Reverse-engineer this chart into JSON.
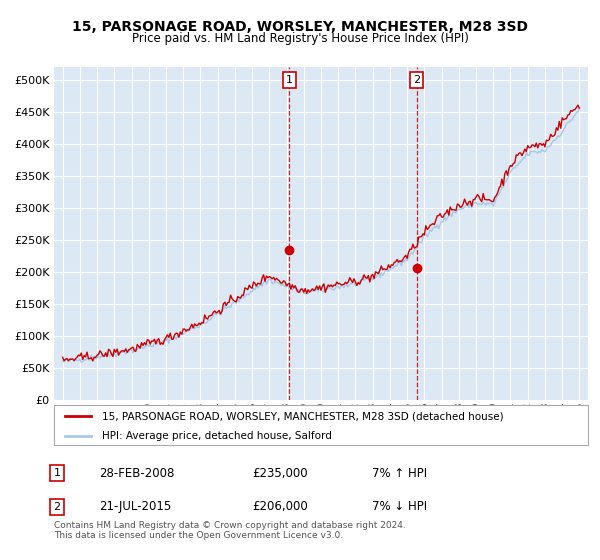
{
  "title": "15, PARSONAGE ROAD, WORSLEY, MANCHESTER, M28 3SD",
  "subtitle": "Price paid vs. HM Land Registry's House Price Index (HPI)",
  "ytick_values": [
    0,
    50000,
    100000,
    150000,
    200000,
    250000,
    300000,
    350000,
    400000,
    450000,
    500000
  ],
  "xlim_start": 1994.5,
  "xlim_end": 2025.5,
  "ylim": [
    0,
    520000
  ],
  "background_color": "#ffffff",
  "plot_bg_color": "#dce9f5",
  "grid_color": "#ffffff",
  "hpi_color": "#a8c8e8",
  "price_color": "#cc0000",
  "marker1_date": 2008.167,
  "marker1_price": 235000,
  "marker2_date": 2015.55,
  "marker2_price": 206000,
  "legend_price_label": "15, PARSONAGE ROAD, WORSLEY, MANCHESTER, M28 3SD (detached house)",
  "legend_hpi_label": "HPI: Average price, detached house, Salford",
  "table_rows": [
    {
      "num": "1",
      "date": "28-FEB-2008",
      "price": "£235,000",
      "hpi": "7% ↑ HPI"
    },
    {
      "num": "2",
      "date": "21-JUL-2015",
      "price": "£206,000",
      "hpi": "7% ↓ HPI"
    }
  ],
  "footer": "Contains HM Land Registry data © Crown copyright and database right 2024.\nThis data is licensed under the Open Government Licence v3.0.",
  "hpi_anchors_x": [
    1995,
    1997,
    1999,
    2001,
    2003,
    2005,
    2006,
    2007,
    2008,
    2009,
    2010,
    2011,
    2012,
    2013,
    2014,
    2015,
    2016,
    2017,
    2018,
    2019,
    2020,
    2021,
    2022,
    2023,
    2024,
    2025
  ],
  "hpi_anchors_y": [
    60000,
    68000,
    78000,
    93000,
    118000,
    152000,
    172000,
    188000,
    178000,
    168000,
    172000,
    177000,
    182000,
    190000,
    205000,
    220000,
    255000,
    280000,
    298000,
    308000,
    305000,
    355000,
    385000,
    390000,
    420000,
    455000
  ],
  "price_anchors_x": [
    1995,
    1997,
    1999,
    2001,
    2003,
    2005,
    2006,
    2007,
    2008,
    2009,
    2010,
    2011,
    2012,
    2013,
    2014,
    2015,
    2016,
    2017,
    2018,
    2019,
    2020,
    2021,
    2022,
    2023,
    2024,
    2025
  ],
  "price_anchors_y": [
    62000,
    70000,
    80000,
    96000,
    122000,
    158000,
    178000,
    195000,
    182000,
    172000,
    176000,
    181000,
    186000,
    194000,
    210000,
    225000,
    262000,
    288000,
    305000,
    315000,
    312000,
    368000,
    395000,
    400000,
    435000,
    462000
  ],
  "noise_seed": 42,
  "noise_hpi": 2500,
  "noise_price": 3500,
  "n_points": 361
}
